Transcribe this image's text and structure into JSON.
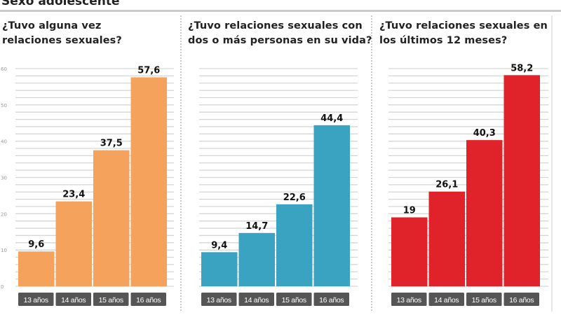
{
  "page_title": "Sexo adolescente",
  "chart_data": [
    {
      "type": "bar",
      "title": "¿Tuvo alguna vez relaciones sexuales?",
      "title_lines": [
        "¿Tuvo alguna vez",
        "relaciones sexuales?"
      ],
      "categories": [
        "13 años",
        "14 años",
        "15 años",
        "16 años"
      ],
      "values": [
        9.6,
        23.4,
        37.5,
        57.6
      ],
      "value_labels": [
        "9,6",
        "23,4",
        "37,5",
        "57,6"
      ],
      "color": "#f5a35c",
      "ylim": [
        0,
        60
      ],
      "y_ticks": [
        0,
        10,
        20,
        30,
        40,
        50,
        60
      ],
      "grid": true
    },
    {
      "type": "bar",
      "title": "¿Tuvo relaciones sexuales con dos o más personas en su vida?",
      "title_lines": [
        "¿Tuvo relaciones sexuales con",
        "dos o más personas en su vida?"
      ],
      "categories": [
        "13 años",
        "14 años",
        "15 años",
        "16 años"
      ],
      "values": [
        9.4,
        14.7,
        22.6,
        44.4
      ],
      "value_labels": [
        "9,4",
        "14,7",
        "22,6",
        "44,4"
      ],
      "color": "#3aa3c2",
      "ylim": [
        0,
        60
      ],
      "grid": true
    },
    {
      "type": "bar",
      "title": "¿Tuvo relaciones sexuales en los últimos 12 meses?",
      "title_lines": [
        "¿Tuvo relaciones sexuales en",
        "los últimos 12 meses?"
      ],
      "categories": [
        "13 años",
        "14 años",
        "15 años",
        "16 años"
      ],
      "values": [
        19,
        26.1,
        40.3,
        58.2
      ],
      "value_labels": [
        "19",
        "26,1",
        "40,3",
        "58,2"
      ],
      "color": "#e0232a",
      "ylim": [
        0,
        60
      ],
      "grid": true
    }
  ]
}
